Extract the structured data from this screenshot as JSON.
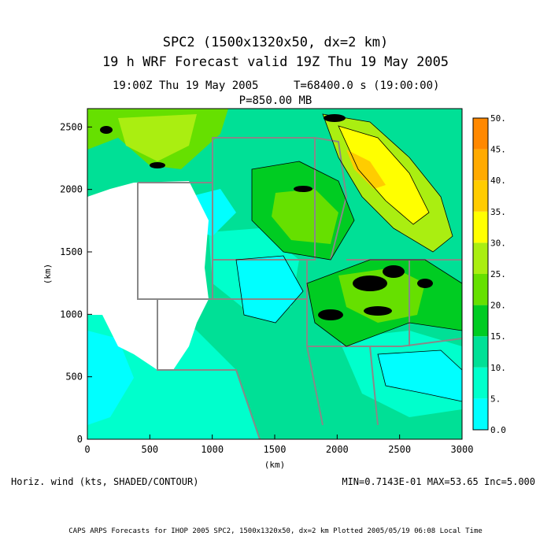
{
  "titles": {
    "line1": "SPC2 (1500x1320x50, dx=2 km)",
    "line2": "19 h WRF Forecast valid 19Z Thu 19 May 2005",
    "time": "19:00Z Thu 19 May 2005",
    "tvalue": "T=68400.0 s (19:00:00)",
    "level": "P=850.00 MB"
  },
  "footer": {
    "field": "Horiz. wind (kts, SHADED/CONTOUR)",
    "stats": "MIN=0.7143E-01 MAX=53.65 Inc=5.000",
    "credit": "CAPS ARPS Forecasts for IHOP 2005  SPC2, 1500x1320x50, dx=2 km  Plotted 2005/05/19 06:08 Local Time"
  },
  "axes": {
    "xlabel": "(km)",
    "ylabel": "(km)",
    "xticks": [
      "0",
      "500",
      "1000",
      "1500",
      "2000",
      "2500",
      "3000"
    ],
    "yticks": [
      "0",
      "500",
      "1000",
      "1500",
      "2000",
      "2500"
    ]
  },
  "colorbar": {
    "labels": [
      "0.0",
      "5.",
      "10.",
      "15.",
      "20.",
      "25.",
      "30.",
      "35.",
      "40.",
      "45.",
      "50."
    ],
    "colors": [
      "#00ffff",
      "#00ffcc",
      "#00e096",
      "#00cc22",
      "#66e000",
      "#aaee11",
      "#ffff00",
      "#ffcc00",
      "#ffaa00",
      "#ff8800",
      "#ff6600"
    ]
  }
}
